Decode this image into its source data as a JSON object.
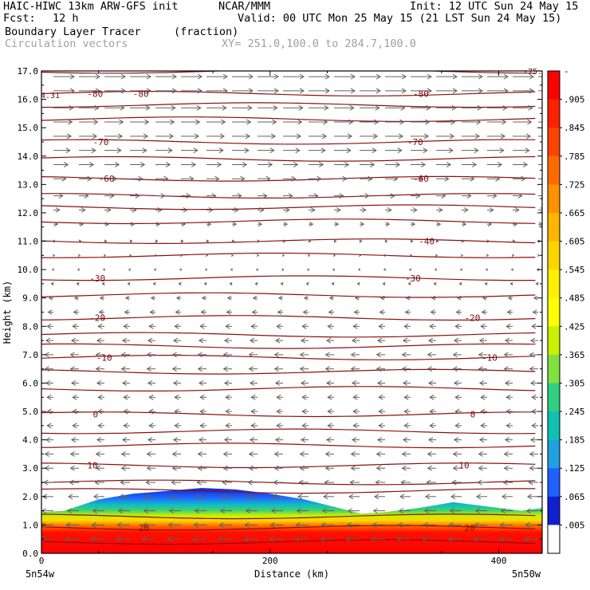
{
  "header": {
    "title_left": "HAIC-HIWC 13km ARW-GFS init",
    "org": "NCAR/MMM",
    "init": "Init: 12 UTC Sun 24 May 15",
    "fcst_label": "Fcst:",
    "fcst_value": "12 h",
    "valid": "Valid: 00 UTC Mon 25 May 15 (21 LST Sun 24 May 15)",
    "field_name": "Boundary Layer Tracer",
    "field_units": "(fraction)",
    "vectors_label": "Circulation vectors",
    "xy_range": "XY= 251.0,100.0 to 284.7,100.0"
  },
  "chart_data": {
    "type": "heatmap",
    "xlabel": "Distance (km)",
    "ylabel": "Height (km)",
    "xlim": [
      0,
      438
    ],
    "ylim": [
      0,
      17
    ],
    "x_ticks": [
      {
        "v": 0,
        "label": "0"
      },
      {
        "v": 200,
        "label": "200"
      },
      {
        "v": 400,
        "label": "400"
      }
    ],
    "y_ticks": [
      "0.0",
      "1.0",
      "2.0",
      "3.0",
      "4.0",
      "5.0",
      "6.0",
      "7.0",
      "8.0",
      "9.0",
      "10.0",
      "11.0",
      "12.0",
      "13.0",
      "14.0",
      "15.0",
      "16.0",
      "17.0"
    ],
    "x_end_labels": {
      "left": "5n54w",
      "right": "5n50w"
    },
    "colorbar": {
      "top_label": "-",
      "labels": [
        ".905",
        ".845",
        ".785",
        ".725",
        ".665",
        ".605",
        ".545",
        ".485",
        ".425",
        ".365",
        ".305",
        ".245",
        ".185",
        ".125",
        ".065",
        ".005"
      ],
      "colors": [
        "#ff0000",
        "#ff2200",
        "#ff4400",
        "#ff6a00",
        "#ff9000",
        "#ffb400",
        "#ffd400",
        "#fff000",
        "#ffff00",
        "#c8f000",
        "#80e040",
        "#30d080",
        "#10c0b0",
        "#20a0e0",
        "#2060ff",
        "#1020d0",
        "#ffffff"
      ]
    },
    "tracer_layer": {
      "top_height_km": [
        {
          "x": 0,
          "top": 1.45
        },
        {
          "x": 20,
          "top": 1.5
        },
        {
          "x": 50,
          "top": 1.9
        },
        {
          "x": 80,
          "top": 2.1
        },
        {
          "x": 110,
          "top": 2.2
        },
        {
          "x": 140,
          "top": 2.3
        },
        {
          "x": 170,
          "top": 2.25
        },
        {
          "x": 200,
          "top": 2.1
        },
        {
          "x": 230,
          "top": 1.9
        },
        {
          "x": 260,
          "top": 1.6
        },
        {
          "x": 280,
          "top": 1.4
        },
        {
          "x": 300,
          "top": 1.45
        },
        {
          "x": 330,
          "top": 1.6
        },
        {
          "x": 360,
          "top": 1.8
        },
        {
          "x": 390,
          "top": 1.65
        },
        {
          "x": 420,
          "top": 1.5
        },
        {
          "x": 438,
          "top": 1.6
        }
      ],
      "surface_value": 0.95
    },
    "contours": [
      {
        "label": "-80",
        "height_km": 16.2,
        "label_x": [
          40,
          80,
          325
        ]
      },
      {
        "label": "-70",
        "height_km": 14.5,
        "label_x": [
          45,
          320
        ]
      },
      {
        "label": "-60",
        "height_km": 13.2,
        "label_x": [
          50,
          325
        ]
      },
      {
        "label": "-40",
        "height_km": 11.0,
        "label_x": [
          330
        ]
      },
      {
        "label": "-30",
        "height_km": 9.7,
        "label_x": [
          42,
          318
        ]
      },
      {
        "label": "-20",
        "height_km": 8.3,
        "label_x": [
          42,
          370
        ]
      },
      {
        "label": "-10",
        "height_km": 6.9,
        "label_x": [
          48,
          385
        ]
      },
      {
        "label": "0",
        "height_km": 4.9,
        "label_x": [
          45,
          375
        ]
      },
      {
        "label": "10",
        "height_km": 3.1,
        "label_x": [
          40,
          365
        ]
      },
      {
        "label": "20",
        "height_km": 0.9,
        "label_x": [
          85,
          370
        ]
      }
    ],
    "extra_contour_heights_km": [
      17.0,
      15.8,
      15.3,
      13.9,
      12.6,
      12.2,
      11.7,
      10.5,
      9.1,
      7.7,
      7.3,
      6.4,
      5.8,
      4.3,
      3.8,
      2.5,
      2.2,
      1.3,
      0.4
    ],
    "corner_labels": {
      "top_left": "4.31",
      "top_right": "-75."
    },
    "wind_vectors": {
      "levels": [
        {
          "z": 16.8,
          "u": 1.0
        },
        {
          "z": 16.3,
          "u": 1.0
        },
        {
          "z": 15.7,
          "u": 0.95
        },
        {
          "z": 15.2,
          "u": 0.9
        },
        {
          "z": 14.7,
          "u": 0.85
        },
        {
          "z": 14.2,
          "u": 0.8
        },
        {
          "z": 13.7,
          "u": 0.7
        },
        {
          "z": 13.2,
          "u": 0.6
        },
        {
          "z": 12.6,
          "u": 0.45
        },
        {
          "z": 12.1,
          "u": 0.3
        },
        {
          "z": 11.6,
          "u": 0.2
        },
        {
          "z": 11.0,
          "u": 0.1
        },
        {
          "z": 10.5,
          "u": 0.05
        },
        {
          "z": 10.0,
          "u": -0.05
        },
        {
          "z": 9.5,
          "u": -0.1
        },
        {
          "z": 9.0,
          "u": -0.2
        },
        {
          "z": 8.5,
          "u": -0.25
        },
        {
          "z": 8.0,
          "u": -0.3
        },
        {
          "z": 7.5,
          "u": -0.35
        },
        {
          "z": 7.0,
          "u": -0.4
        },
        {
          "z": 6.5,
          "u": -0.4
        },
        {
          "z": 6.0,
          "u": -0.35
        },
        {
          "z": 5.5,
          "u": -0.3
        },
        {
          "z": 5.0,
          "u": -0.3
        },
        {
          "z": 4.5,
          "u": -0.3
        },
        {
          "z": 4.0,
          "u": -0.35
        },
        {
          "z": 3.5,
          "u": -0.4
        },
        {
          "z": 3.0,
          "u": -0.4
        },
        {
          "z": 2.5,
          "u": -0.45
        },
        {
          "z": 2.0,
          "u": -0.5
        },
        {
          "z": 1.5,
          "u": -0.55
        },
        {
          "z": 1.0,
          "u": -0.6
        },
        {
          "z": 0.5,
          "u": -0.65
        }
      ]
    }
  }
}
